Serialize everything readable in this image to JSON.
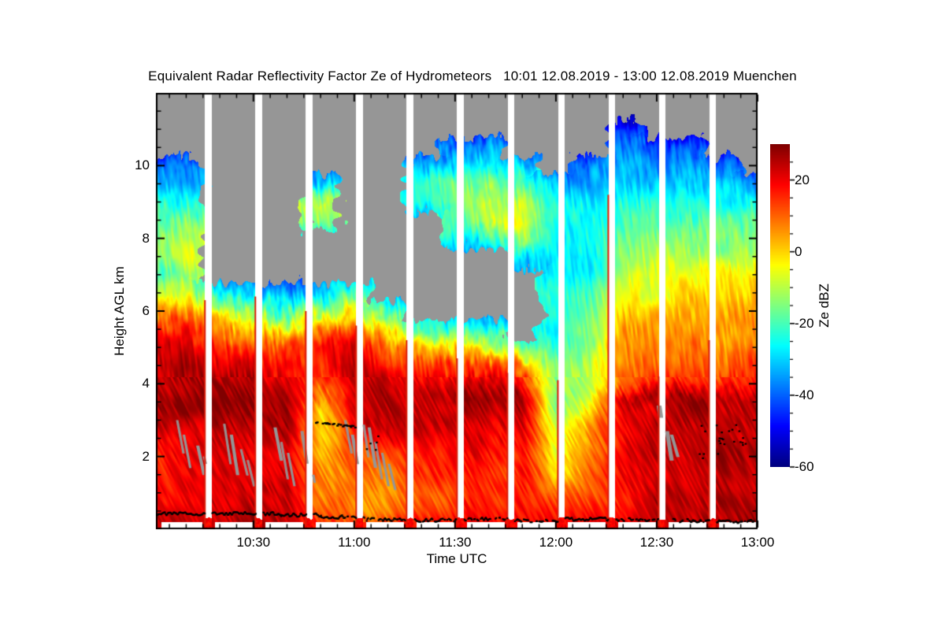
{
  "figure": {
    "title": "Equivalent Radar Reflectivity Factor Ze of Hydrometeors   10:01 12.08.2019 - 13:00 12.08.2019 Muenchen",
    "background": "#ffffff"
  },
  "axes": {
    "xlabel": "Time UTC",
    "ylabel": "Height AGL km",
    "x_major_ticks": [
      {
        "label": "10:30",
        "min_since_10": 30
      },
      {
        "label": "11:00",
        "min_since_10": 60
      },
      {
        "label": "11:30",
        "min_since_10": 90
      },
      {
        "label": "12:00",
        "min_since_10": 120
      },
      {
        "label": "12:30",
        "min_since_10": 150
      },
      {
        "label": "13:00",
        "min_since_10": 180
      }
    ],
    "x_minor_step_min": 5,
    "y_major_ticks": [
      {
        "label": "2",
        "km": 2
      },
      {
        "label": "4",
        "km": 4
      },
      {
        "label": "6",
        "km": 6
      },
      {
        "label": "8",
        "km": 8
      },
      {
        "label": "10",
        "km": 10
      }
    ],
    "y_minor_step_km": 0.5,
    "y_range_km": [
      0,
      12
    ],
    "x_start": "10:01",
    "x_end": "13:00"
  },
  "colorbar": {
    "title": "Ze dBZ",
    "range": [
      -60,
      30
    ],
    "major_ticks": [
      {
        "label": "20",
        "value": 20
      },
      {
        "label": "0",
        "value": 0
      },
      {
        "label": "-20",
        "value": -20
      },
      {
        "label": "-40",
        "value": -40
      },
      {
        "label": "-60",
        "value": -60
      }
    ],
    "minor_step": 5,
    "colormap": "jet"
  },
  "chart_data": {
    "type": "heatmap",
    "title": "Equivalent Radar Reflectivity Factor Ze of Hydrometeors",
    "period": "10:01 12.08.2019 - 13:00 12.08.2019",
    "station": "Muenchen",
    "xlabel": "Time UTC",
    "ylabel": "Height AGL km",
    "zlabel": "Ze dBZ",
    "z_range": [
      -60,
      30
    ],
    "y_range": [
      0,
      12
    ],
    "colormap": "jet",
    "no_echo_color": "#969696",
    "gap_color": "#ffffff",
    "heights": [
      0.15,
      0.5,
      1,
      1.5,
      2,
      2.5,
      3,
      3.3,
      3.6,
      4,
      4.5,
      5,
      5.5,
      6,
      6.5,
      7,
      7.5,
      8,
      8.5,
      9,
      9.5,
      10,
      10.5,
      11,
      11.5
    ],
    "col_times_min": [
      0,
      10,
      20,
      30,
      40,
      50,
      60,
      70,
      80,
      90,
      100,
      110,
      120,
      130,
      140,
      150,
      160,
      170,
      180
    ],
    "grid": [
      [
        24,
        22,
        20,
        19,
        18,
        20,
        23,
        24,
        25,
        26,
        24,
        20,
        13,
        4,
        -10,
        -20,
        -14,
        -12,
        -18,
        -26,
        -32,
        -38,
        null,
        null,
        null
      ],
      [
        24,
        23,
        21,
        20,
        19,
        21,
        24,
        26,
        27,
        27,
        25,
        21,
        15,
        5,
        -6,
        -12,
        -8,
        -11,
        -17,
        -24,
        -31,
        -37,
        null,
        null,
        null
      ],
      [
        24,
        23,
        22,
        21,
        20,
        22,
        25,
        27,
        28,
        26,
        23,
        17,
        7,
        -7,
        -25,
        null,
        null,
        null,
        null,
        null,
        null,
        null,
        null,
        null,
        null
      ],
      [
        25,
        24,
        23,
        22,
        21,
        23,
        26,
        28,
        28,
        26,
        21,
        13,
        1,
        -16,
        -30,
        null,
        null,
        null,
        null,
        null,
        null,
        null,
        null,
        null,
        null
      ],
      [
        24,
        23,
        22,
        21,
        22,
        24,
        27,
        28,
        27,
        24,
        19,
        9,
        -3,
        -20,
        -34,
        null,
        null,
        null,
        null,
        null,
        null,
        null,
        null,
        null,
        null
      ],
      [
        16,
        12,
        8,
        4,
        1,
        -2,
        -4,
        -2,
        4,
        10,
        18,
        18,
        8,
        -12,
        -28,
        null,
        null,
        null,
        -15,
        -10,
        -28,
        null,
        null,
        null,
        null
      ],
      [
        14,
        8,
        6,
        8,
        12,
        16,
        20,
        22,
        24,
        26,
        25,
        21,
        12,
        -2,
        -22,
        null,
        null,
        null,
        null,
        null,
        null,
        null,
        null,
        null,
        null
      ],
      [
        16,
        10,
        8,
        10,
        14,
        18,
        24,
        26,
        25,
        22,
        18,
        10,
        -4,
        -22,
        null,
        null,
        null,
        null,
        null,
        null,
        null,
        null,
        null,
        null,
        null
      ],
      [
        18,
        14,
        12,
        14,
        16,
        20,
        24,
        25,
        24,
        20,
        14,
        2,
        -16,
        null,
        null,
        null,
        null,
        null,
        null,
        -26,
        -25,
        -32,
        null,
        null,
        null
      ],
      [
        18,
        16,
        14,
        15,
        17,
        20,
        23,
        24,
        26,
        22,
        14,
        -2,
        -22,
        null,
        null,
        null,
        null,
        -26,
        -20,
        -16,
        -18,
        -28,
        -36,
        null,
        null
      ],
      [
        18,
        16,
        15,
        16,
        18,
        20,
        23,
        25,
        27,
        21,
        10,
        -8,
        -24,
        null,
        null,
        null,
        null,
        -25,
        -8,
        -6,
        -14,
        -26,
        -34,
        null,
        null
      ],
      [
        18,
        17,
        16,
        17,
        18,
        21,
        24,
        26,
        27,
        20,
        6,
        -14,
        null,
        null,
        null,
        null,
        -28,
        -12,
        -3,
        -8,
        -18,
        -28,
        null,
        null,
        null
      ],
      [
        18,
        14,
        6,
        0,
        -4,
        -8,
        -14,
        -18,
        -16,
        -12,
        -16,
        -22,
        -26,
        -24,
        -20,
        -26,
        -30,
        -26,
        -22,
        -26,
        -32,
        null,
        null,
        null,
        null
      ],
      [
        20,
        16,
        12,
        10,
        8,
        4,
        0,
        -4,
        -6,
        -8,
        -10,
        -14,
        -18,
        -20,
        -22,
        -24,
        -26,
        -24,
        -26,
        -30,
        -34,
        -38,
        null,
        null,
        null
      ],
      [
        22,
        20,
        19,
        18,
        18,
        19,
        21,
        22,
        26,
        12,
        10,
        6,
        2,
        -2,
        -5,
        -9,
        -13,
        -17,
        -21,
        -25,
        -29,
        -34,
        -39,
        -45,
        null
      ],
      [
        26,
        25,
        24,
        23,
        22,
        22,
        24,
        24,
        27,
        16,
        10,
        6,
        3,
        0,
        -3,
        -7,
        -11,
        -15,
        -19,
        -24,
        -29,
        -34,
        -40,
        null,
        null
      ],
      [
        27,
        26,
        26,
        25,
        24,
        24,
        25,
        26,
        27,
        16,
        11,
        7,
        4,
        1,
        -2,
        -6,
        -10,
        -15,
        -19,
        -24,
        -30,
        -36,
        -42,
        null,
        null
      ],
      [
        27,
        26,
        26,
        25,
        25,
        25,
        26,
        26,
        27,
        17,
        12,
        8,
        5,
        2,
        -2,
        -6,
        -10,
        -15,
        -20,
        -26,
        -32,
        -40,
        null,
        null,
        null
      ],
      [
        26,
        26,
        25,
        25,
        24,
        25,
        26,
        27,
        26,
        17,
        13,
        9,
        6,
        3,
        -1,
        -5,
        -10,
        -15,
        -21,
        -28,
        -36,
        null,
        null,
        null,
        null
      ]
    ],
    "scan_gaps_min": [
      16.5,
      31.5,
      46.5,
      61.5,
      76.5,
      91.5,
      106.5,
      121.5,
      136.5,
      151.5,
      166.5
    ],
    "gap_halfwidth_min": 1.0,
    "gap_edge_spike_tops_km": [
      6.3,
      6.4,
      6.0,
      5.6,
      5.2,
      4.7,
      4.3,
      4.1,
      9.2,
      4.2,
      5.2
    ],
    "gray_streaks": [
      [
        7,
        3.0,
        2.1,
        3
      ],
      [
        9,
        2.6,
        1.7,
        3
      ],
      [
        13,
        2.3,
        1.5,
        4
      ],
      [
        15,
        2.0,
        1.3,
        3
      ],
      [
        21,
        2.9,
        1.8,
        3
      ],
      [
        23,
        2.6,
        1.5,
        4
      ],
      [
        26,
        2.2,
        1.5,
        3
      ],
      [
        28,
        1.9,
        1.2,
        3
      ],
      [
        36,
        2.8,
        1.9,
        4
      ],
      [
        38,
        2.4,
        1.4,
        3
      ],
      [
        40,
        2.1,
        1.2,
        3
      ],
      [
        44,
        2.7,
        1.6,
        4
      ],
      [
        46,
        2.3,
        1.3,
        3
      ],
      [
        57,
        3.0,
        2.1,
        3
      ],
      [
        59,
        2.6,
        1.6,
        4
      ],
      [
        62,
        3.2,
        2.0,
        3
      ],
      [
        64,
        2.8,
        1.7,
        4
      ],
      [
        66,
        2.4,
        1.4,
        3
      ],
      [
        68,
        2.1,
        1.2,
        3
      ],
      [
        70,
        1.8,
        1.1,
        3
      ],
      [
        150,
        3.4,
        2.2,
        6
      ],
      [
        152,
        3.0,
        1.9,
        5
      ],
      [
        154,
        2.6,
        2.0,
        4
      ]
    ],
    "black_dots": {
      "surface_line_segments": [
        [
          1,
          38,
          0.45,
          0
        ],
        [
          38,
          50,
          0.41,
          0
        ],
        [
          50,
          63,
          0.36,
          1
        ],
        [
          63,
          76,
          0.29,
          1
        ],
        [
          76,
          91,
          0.27,
          1
        ],
        [
          91,
          106,
          0.3,
          1
        ],
        [
          106,
          121,
          0.26,
          1
        ],
        [
          121,
          137,
          0.3,
          0
        ],
        [
          137,
          152,
          0.29,
          1
        ],
        [
          152,
          167,
          0.26,
          1
        ],
        [
          167,
          179,
          0.24,
          1
        ]
      ],
      "clusters": [
        {
          "t0": 48,
          "t1": 61,
          "h0": 2.82,
          "h1": 2.96,
          "style": "dash",
          "n": 40
        },
        {
          "t0": 63,
          "t1": 67,
          "h0": 2.2,
          "h1": 2.6,
          "style": "scatter",
          "n": 5
        },
        {
          "t0": 163,
          "t1": 177,
          "h0": 2.3,
          "h1": 2.9,
          "style": "scatter",
          "n": 26
        },
        {
          "t0": 160,
          "t1": 168,
          "h0": 1.95,
          "h1": 2.15,
          "style": "scatter",
          "n": 6
        }
      ]
    }
  }
}
